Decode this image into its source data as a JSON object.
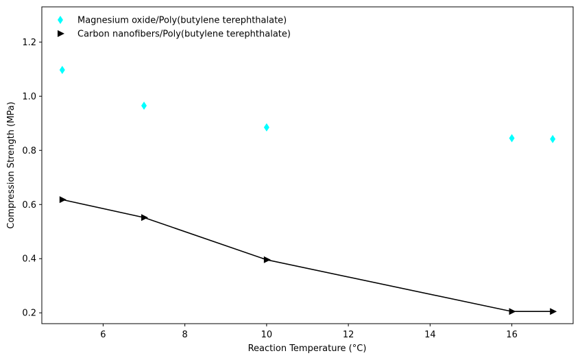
{
  "chart_data": {
    "type": "scatter",
    "xlabel": "Reaction Temperature (°C)",
    "ylabel": "Compression Strength (MPa)",
    "xlim": [
      4.5,
      17.5
    ],
    "ylim": [
      0.16,
      1.33
    ],
    "xticks": [
      6,
      8,
      10,
      12,
      14,
      16
    ],
    "yticks": [
      0.2,
      0.4,
      0.6,
      0.8,
      1.0,
      1.2
    ],
    "xtick_labels": [
      "6",
      "8",
      "10",
      "12",
      "14",
      "16"
    ],
    "ytick_labels": [
      "0.2",
      "0.4",
      "0.6",
      "0.8",
      "1.0",
      "1.2"
    ],
    "grid": false,
    "legend_position": "top-left",
    "series": [
      {
        "name": "Magnesium oxide/Poly(butylene terephthalate)",
        "marker": "thin-diamond",
        "color": "#00ffff",
        "line": false,
        "x": [
          5,
          7,
          10,
          16,
          17
        ],
        "y": [
          1.097,
          0.965,
          0.885,
          0.845,
          0.842
        ]
      },
      {
        "name": "Carbon nanofibers/Poly(butylene terephthalate)",
        "marker": "triangle-right",
        "color": "#000000",
        "line": true,
        "x": [
          5,
          7,
          10,
          16,
          17
        ],
        "y": [
          0.618,
          0.552,
          0.396,
          0.205,
          0.205
        ]
      }
    ]
  }
}
